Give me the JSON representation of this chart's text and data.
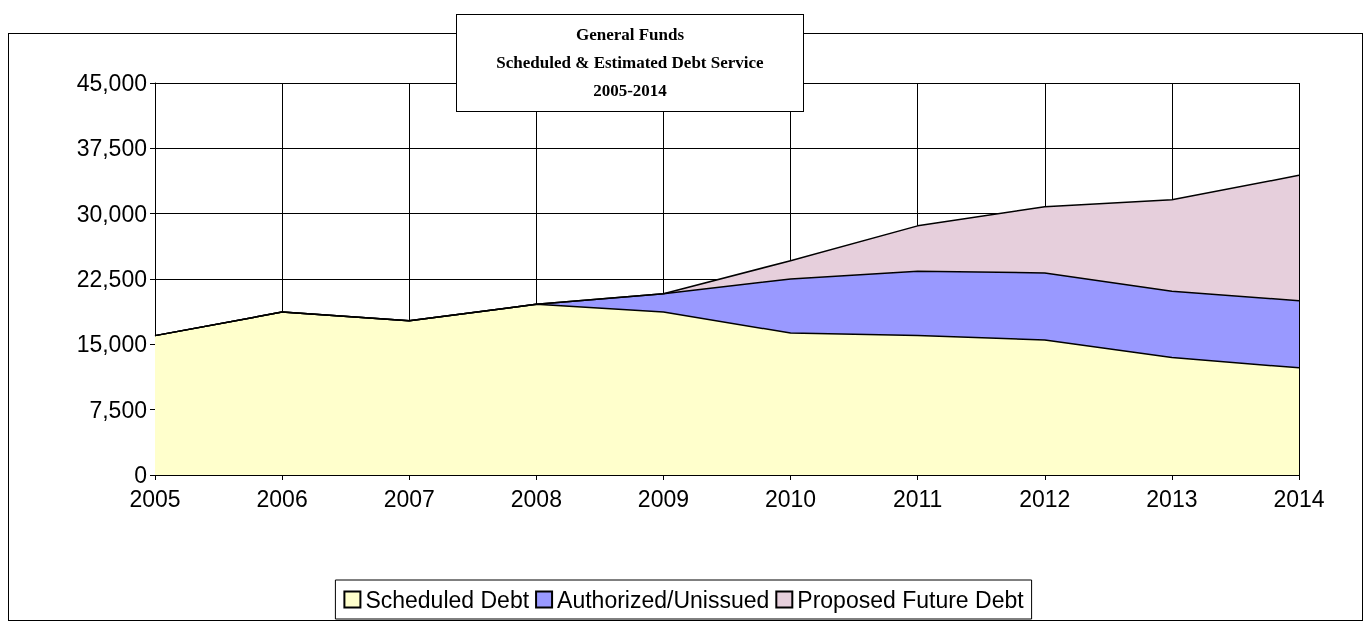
{
  "chart_data": {
    "type": "area",
    "title": "General Funds\nScheduled & Estimated Debt Service\n2005-2014",
    "categories": [
      "2005",
      "2006",
      "2007",
      "2008",
      "2009",
      "2010",
      "2011",
      "2012",
      "2013",
      "2014"
    ],
    "stacked": true,
    "series": [
      {
        "name": "Scheduled Debt",
        "color": "#ffffcc",
        "values": [
          16000,
          18700,
          17700,
          19600,
          18700,
          16300,
          16000,
          15500,
          13500,
          12300
        ]
      },
      {
        "name": "Authorized/Unissued",
        "color": "#9999ff",
        "values": [
          0,
          0,
          0,
          0,
          2100,
          6200,
          7400,
          7700,
          7600,
          7700
        ]
      },
      {
        "name": "Proposed Future Debt",
        "color": "#e6cfdc",
        "values": [
          0,
          0,
          0,
          0,
          0,
          2100,
          5200,
          7600,
          10500,
          14400
        ]
      }
    ],
    "ylim": [
      0,
      45000
    ],
    "yticks": [
      0,
      {
        "value": 7500,
        "label": "7,500"
      },
      {
        "value": 15000,
        "label": "15,000"
      },
      {
        "value": 22500,
        "label": "22,500"
      },
      {
        "value": 30000,
        "label": "30,000"
      },
      {
        "value": 37500,
        "label": "37,500"
      },
      {
        "value": 45000,
        "label": "45,000"
      }
    ],
    "grid": true,
    "legend": "bottom",
    "marker": "none"
  }
}
